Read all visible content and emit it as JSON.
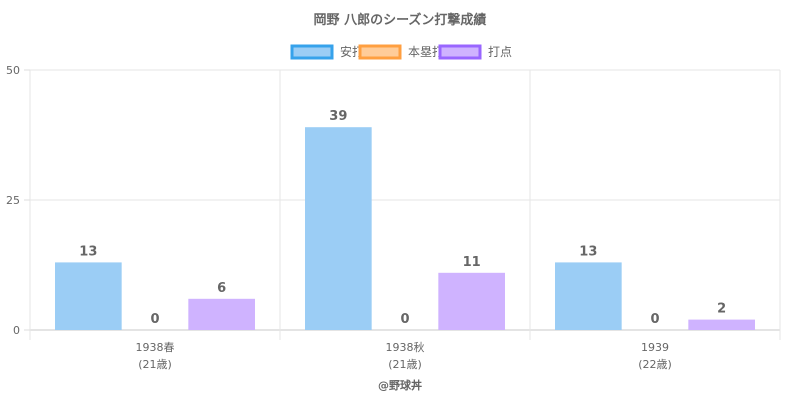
{
  "chart_data": {
    "type": "bar",
    "title": "岡野 八郎のシーズン打撃成績",
    "categories": [
      [
        "1938春",
        "(21歳)"
      ],
      [
        "1938秋",
        "(21歳)"
      ],
      [
        "1939",
        "(22歳)"
      ]
    ],
    "series": [
      {
        "name": "安打",
        "values": [
          13,
          39,
          13
        ],
        "fill": "#9BCDF5",
        "stroke": "#36A2EB"
      },
      {
        "name": "本塁打",
        "values": [
          0,
          0,
          0
        ],
        "fill": "#FFCC99",
        "stroke": "#FF9F40"
      },
      {
        "name": "打点",
        "values": [
          6,
          11,
          2
        ],
        "fill": "#CFB3FF",
        "stroke": "#9966FF"
      }
    ],
    "ylim": [
      0,
      50
    ],
    "yticks": [
      0,
      25,
      50
    ],
    "grid": true,
    "legend": "top",
    "credit": "@野球丼"
  }
}
